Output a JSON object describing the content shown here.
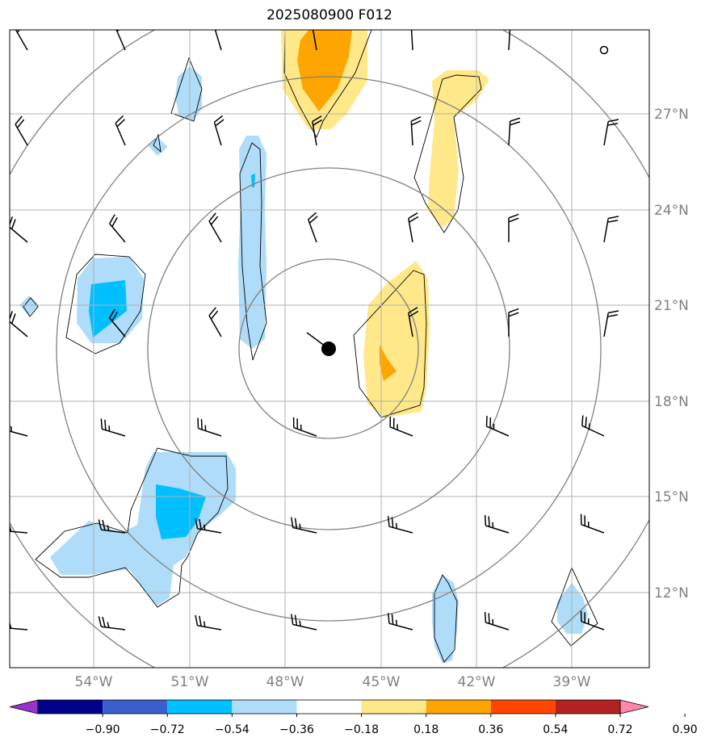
{
  "title": "2025080900 F012",
  "map": {
    "lat_range": [
      9.7,
      29.6
    ],
    "lon_range": [
      -56.6,
      -36.6
    ],
    "lat_ticks": [
      {
        "value": 27,
        "label": "27°N"
      },
      {
        "value": 24,
        "label": "24°N"
      },
      {
        "value": 21,
        "label": "21°N"
      },
      {
        "value": 18,
        "label": "18°N"
      },
      {
        "value": 15,
        "label": "15°N"
      },
      {
        "value": 12,
        "label": "12°N"
      }
    ],
    "lon_ticks": [
      {
        "value": -54,
        "label": "54°W"
      },
      {
        "value": -51,
        "label": "51°W"
      },
      {
        "value": -48,
        "label": "48°W"
      },
      {
        "value": -45,
        "label": "45°W"
      },
      {
        "value": -42,
        "label": "42°W"
      },
      {
        "value": -39,
        "label": "39°W"
      }
    ],
    "grid": true,
    "center_marker": {
      "lon": -46.4,
      "lat": 19.6
    }
  },
  "colorbar": {
    "boundaries": [
      "−0.90",
      "−0.72",
      "−0.54",
      "−0.36",
      "−0.18",
      "0.18",
      "0.36",
      "0.54",
      "0.72",
      "0.90"
    ],
    "colors": [
      "#9932cc",
      "#00008b",
      "#3a5fcd",
      "#00bfff",
      "#afdcf8",
      "#ffffff",
      "#ffe88a",
      "#ffa500",
      "#ff4500",
      "#b22222",
      "#ff88aa"
    ]
  },
  "colors": {
    "light_blue": "#afdcf8",
    "blue": "#00bfff",
    "light_yellow": "#ffe88a",
    "orange": "#ffa500",
    "rings": "#808080",
    "grid": "#b0b0b0"
  }
}
